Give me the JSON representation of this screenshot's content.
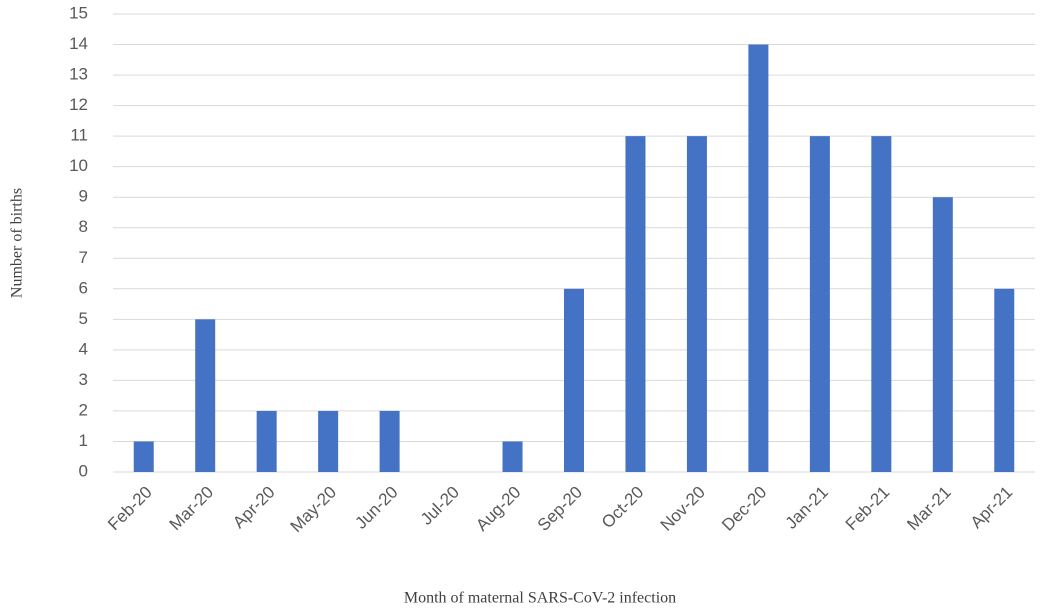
{
  "chart_data": {
    "type": "bar",
    "x_label": "Month of maternal SARS-CoV-2 infection",
    "y_label": "Number of births",
    "categories": [
      "Feb-20",
      "Mar-20",
      "Apr-20",
      "May-20",
      "Jun-20",
      "Jul-20",
      "Aug-20",
      "Sep-20",
      "Oct-20",
      "Nov-20",
      "Dec-20",
      "Jan-21",
      "Feb-21",
      "Mar-21",
      "Apr-21"
    ],
    "values": [
      1,
      5,
      2,
      2,
      2,
      0,
      1,
      6,
      11,
      11,
      14,
      11,
      11,
      9,
      6
    ],
    "color": "#4472c4",
    "ylim": [
      0,
      15
    ],
    "yticks": [
      0,
      1,
      2,
      3,
      4,
      5,
      6,
      7,
      8,
      9,
      10,
      11,
      12,
      13,
      14,
      15
    ],
    "grid": true
  }
}
